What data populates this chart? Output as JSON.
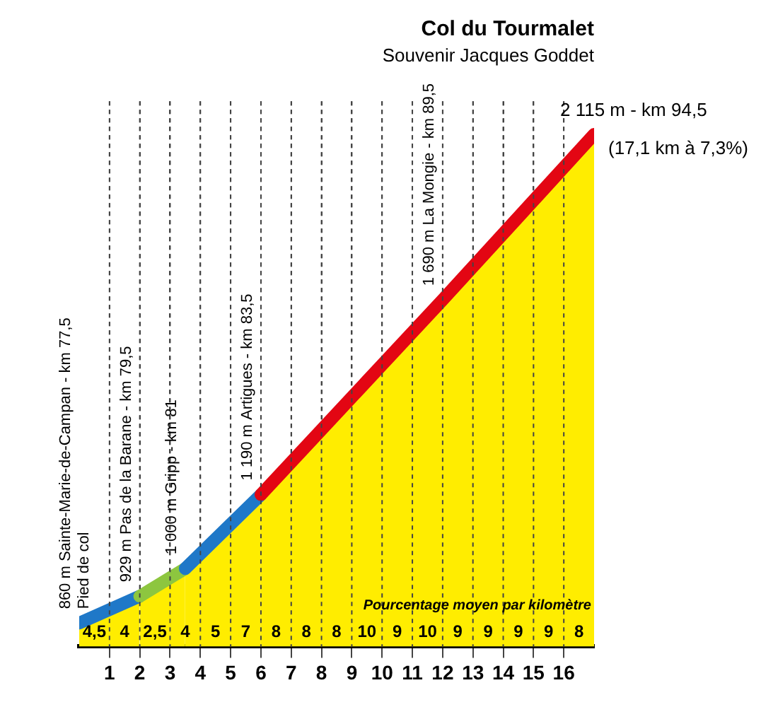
{
  "chart_data": {
    "type": "area",
    "title": "Col du Tourmalet",
    "subtitle": "Souvenir Jacques Goddet",
    "x": [
      0,
      2,
      3.5,
      6,
      12,
      17
    ],
    "series": [
      {
        "color": "#ffed00",
        "colors": [
          "#1f78c8",
          "#1f78c8",
          "#8dc63f",
          "#1f78c8",
          "#e30613",
          "#e30613"
        ],
        "values": [
          860,
          929,
          1000,
          1190,
          1690,
          2115
        ],
        "value_labels": [
          "860 m",
          "929 m",
          "1 000 m",
          "1 190 m",
          "1 690 m",
          "2 115 m"
        ]
      }
    ],
    "xlim": [
      0,
      17
    ],
    "xticks": [
      1,
      2,
      3,
      4,
      5,
      6,
      7,
      8,
      9,
      10,
      11,
      12,
      13,
      14,
      15,
      16
    ],
    "grid": "x",
    "legend": false,
    "marker": "none",
    "line_style": "solid",
    "tick_labels": "x",
    "annotations": [
      "Sainte-Marie-de-Campan - km 77,5",
      "Pas de la Barane - km 79,5",
      "Gripp - km 81",
      "Artigues - km 83,5",
      "La Mongie - km 89,5",
      "- km 94,5",
      "(17,1 km à 7,3%)",
      "Pied de col",
      "Pourcentage moyen par kilomètre",
      "4,5",
      "4",
      "2,5",
      "4",
      "5",
      "7",
      "8",
      "8",
      "8",
      "10",
      "9",
      "10",
      "9",
      "9",
      "9",
      "9",
      "8"
    ]
  }
}
